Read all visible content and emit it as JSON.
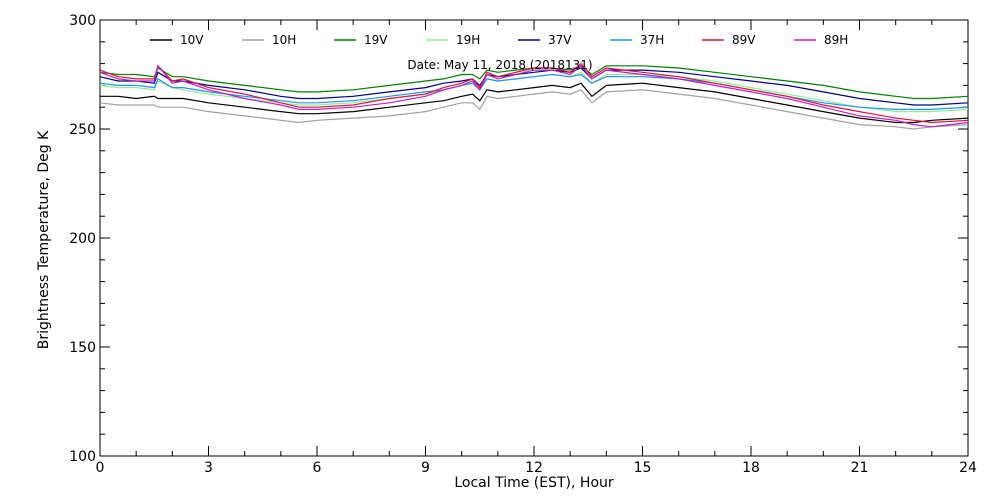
{
  "chart_data": {
    "type": "line",
    "xlabel": "Local Time (EST), Hour",
    "ylabel": "Brightness Temperature, Deg K",
    "annotation": "Date: May 11, 2018 (2018131)",
    "xlim": [
      0,
      24
    ],
    "ylim": [
      100,
      300
    ],
    "xticks": [
      0,
      3,
      6,
      9,
      12,
      15,
      18,
      21,
      24
    ],
    "xtick_labels": [
      "0",
      "3",
      "6",
      "9",
      "12",
      "15",
      "18",
      "21",
      "24"
    ],
    "yticks": [
      100,
      150,
      200,
      250,
      300
    ],
    "ytick_labels": [
      "100",
      "150",
      "200",
      "250",
      "300"
    ],
    "grid": false,
    "legend_position": "top",
    "x": [
      0,
      0.5,
      1,
      1.5,
      1.6,
      2,
      2.3,
      3,
      4,
      5,
      5.5,
      6,
      7,
      8,
      9,
      9.5,
      10,
      10.3,
      10.5,
      10.7,
      11,
      11.5,
      12,
      12.5,
      13,
      13.3,
      13.6,
      14,
      15,
      16,
      17,
      18,
      19,
      20,
      21,
      22,
      22.5,
      23,
      24
    ],
    "series": [
      {
        "name": "10V",
        "color": "#000000",
        "values": [
          265,
          265,
          264,
          265,
          264,
          264,
          264,
          262,
          260,
          258,
          257,
          257,
          258,
          260,
          262,
          263,
          265,
          266,
          263,
          268,
          267,
          268,
          269,
          270,
          269,
          271,
          265,
          270,
          271,
          269,
          267,
          264,
          261,
          258,
          255,
          253,
          253,
          254,
          255
        ]
      },
      {
        "name": "10H",
        "color": "#a0a0a0",
        "values": [
          262,
          261,
          261,
          261,
          260,
          260,
          260,
          258,
          256,
          254,
          253,
          254,
          255,
          256,
          258,
          260,
          262,
          262,
          259,
          265,
          264,
          265,
          266,
          267,
          266,
          268,
          262,
          267,
          268,
          266,
          264,
          261,
          258,
          255,
          252,
          251,
          250,
          251,
          252
        ]
      },
      {
        "name": "19V",
        "color": "#008000",
        "values": [
          276,
          275,
          275,
          274,
          278,
          274,
          274,
          272,
          270,
          268,
          267,
          267,
          268,
          270,
          272,
          273,
          275,
          275,
          273,
          277,
          276,
          277,
          278,
          278,
          277,
          279,
          275,
          279,
          279,
          278,
          276,
          274,
          272,
          270,
          267,
          265,
          264,
          264,
          265
        ]
      },
      {
        "name": "19H",
        "color": "#90ee90",
        "values": [
          270,
          269,
          269,
          268,
          272,
          269,
          268,
          266,
          264,
          262,
          261,
          261,
          262,
          264,
          266,
          268,
          270,
          271,
          268,
          273,
          272,
          273,
          274,
          275,
          274,
          276,
          271,
          275,
          275,
          274,
          272,
          269,
          266,
          263,
          260,
          258,
          258,
          258,
          259
        ]
      },
      {
        "name": "37V",
        "color": "#000080",
        "values": [
          274,
          272,
          272,
          271,
          276,
          272,
          272,
          270,
          268,
          265,
          264,
          264,
          265,
          267,
          269,
          271,
          272,
          273,
          270,
          275,
          274,
          275,
          276,
          277,
          276,
          278,
          273,
          277,
          277,
          276,
          274,
          272,
          270,
          267,
          264,
          262,
          261,
          261,
          262
        ]
      },
      {
        "name": "37H",
        "color": "#1e90ff",
        "values": [
          271,
          270,
          270,
          269,
          273,
          269,
          269,
          267,
          265,
          263,
          262,
          262,
          263,
          265,
          267,
          268,
          270,
          271,
          268,
          273,
          272,
          273,
          274,
          275,
          274,
          275,
          271,
          274,
          274,
          273,
          271,
          268,
          265,
          262,
          260,
          259,
          259,
          259,
          260
        ]
      },
      {
        "name": "89V",
        "color": "#dc143c",
        "values": [
          277,
          274,
          273,
          273,
          279,
          272,
          273,
          269,
          266,
          262,
          260,
          260,
          261,
          264,
          266,
          269,
          271,
          273,
          269,
          276,
          274,
          276,
          278,
          278,
          276,
          280,
          274,
          278,
          276,
          274,
          271,
          268,
          265,
          261,
          258,
          255,
          254,
          253,
          254
        ]
      },
      {
        "name": "89H",
        "color": "#c020c0",
        "values": [
          276,
          273,
          272,
          272,
          279,
          271,
          272,
          268,
          264,
          261,
          259,
          259,
          260,
          262,
          265,
          268,
          270,
          272,
          268,
          275,
          273,
          275,
          277,
          277,
          275,
          279,
          273,
          277,
          275,
          273,
          270,
          267,
          264,
          260,
          256,
          254,
          252,
          251,
          253
        ]
      }
    ]
  }
}
